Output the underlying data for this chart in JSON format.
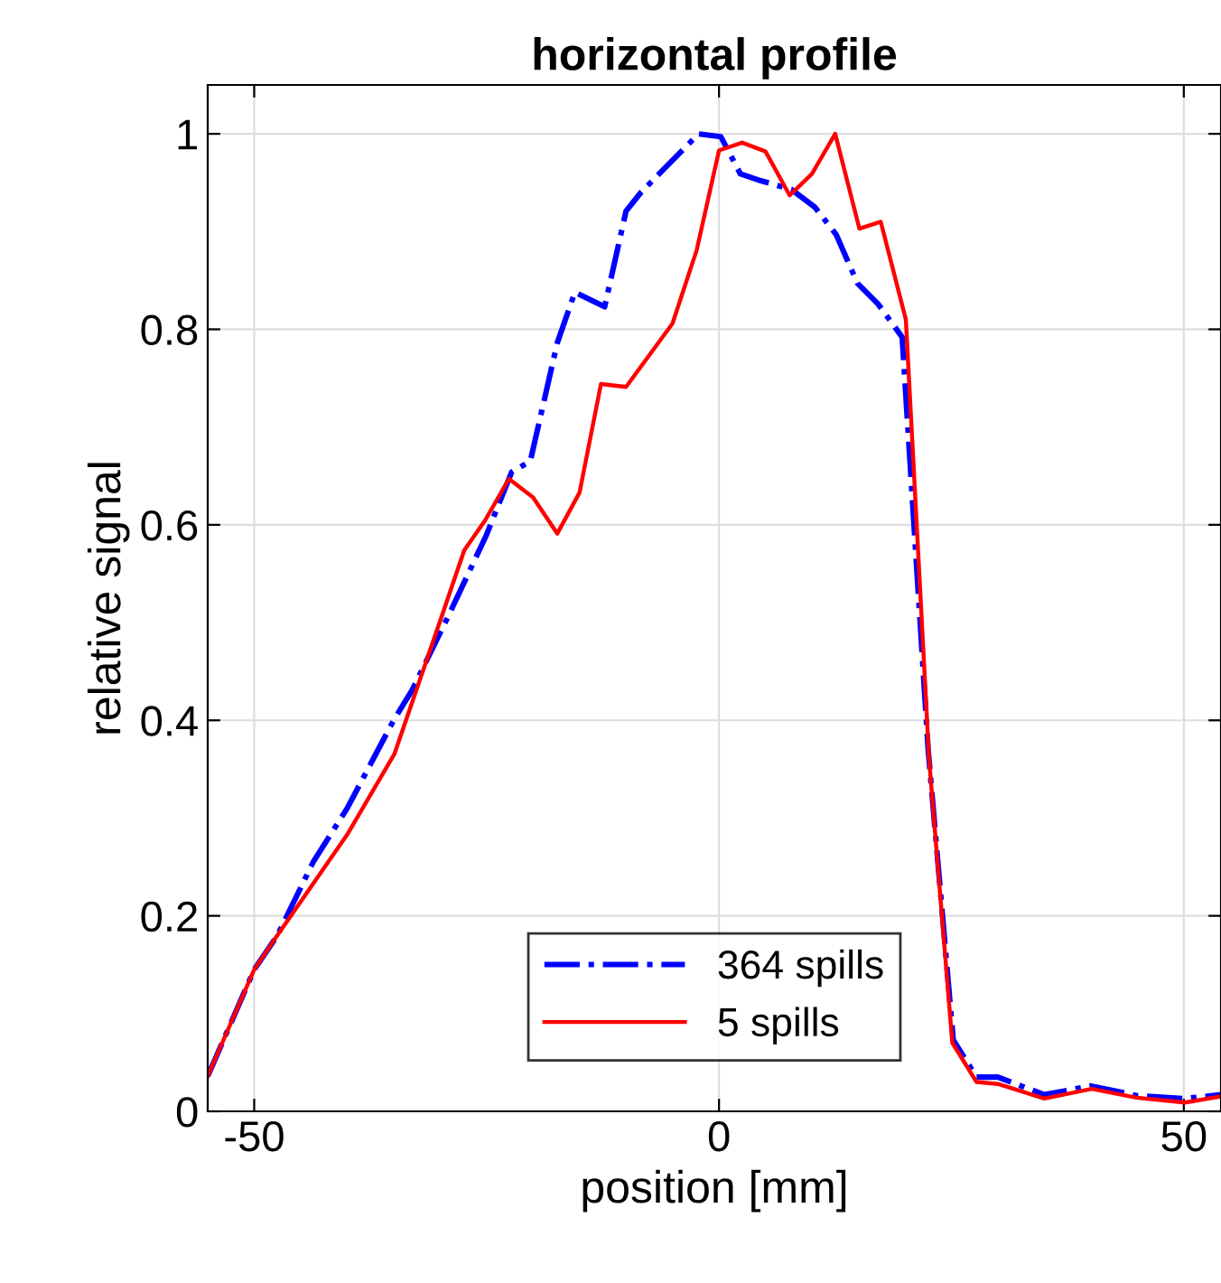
{
  "chart_data": {
    "type": "line",
    "title": "horizontal profile",
    "xlabel": "position [mm]",
    "ylabel": "relative signal",
    "xlim": [
      -55,
      54
    ],
    "ylim": [
      0,
      1.05
    ],
    "xticks": [
      -50,
      0,
      50
    ],
    "yticks": [
      0,
      0.2,
      0.4,
      0.6,
      0.8,
      1
    ],
    "grid": true,
    "legend": "bottom",
    "series": [
      {
        "name": "364 spills",
        "color": "#0000ff",
        "line_style": "dashdot",
        "x": [
          -55,
          -50,
          -47.5,
          -43.6,
          -40,
          -35,
          -33,
          -28.9,
          -25,
          -22.3,
          -20.3,
          -17.4,
          -15.5,
          -12.3,
          -10,
          -8.4,
          -2.2,
          0.2,
          2.3,
          4.5,
          7.8,
          10.3,
          12.6,
          14.9,
          17.1,
          19.7,
          22.5,
          25.2,
          27.7,
          30,
          35,
          40,
          45,
          50,
          54
        ],
        "values": [
          0.036,
          0.145,
          0.18,
          0.256,
          0.31,
          0.4,
          0.431,
          0.511,
          0.59,
          0.654,
          0.665,
          0.786,
          0.838,
          0.823,
          0.921,
          0.94,
          1.0,
          0.997,
          0.959,
          0.952,
          0.943,
          0.925,
          0.897,
          0.847,
          0.826,
          0.792,
          0.37,
          0.073,
          0.035,
          0.035,
          0.017,
          0.026,
          0.016,
          0.013,
          0.017
        ]
      },
      {
        "name": "5 spills",
        "color": "#ff0000",
        "line_style": "solid",
        "x": [
          -55,
          -50,
          -47.8,
          -40,
          -34.9,
          -29.7,
          -27.4,
          -25.2,
          -22.6,
          -20,
          -17.4,
          -15,
          -12.7,
          -10,
          -5,
          -2.4,
          0,
          2.5,
          5,
          7.6,
          10,
          12.5,
          15.1,
          17.4,
          20.1,
          22.6,
          25.1,
          27.7,
          30,
          35,
          40.1,
          44.9,
          50.1,
          53.8
        ],
        "values": [
          0.036,
          0.145,
          0.176,
          0.283,
          0.366,
          0.51,
          0.574,
          0.604,
          0.647,
          0.628,
          0.591,
          0.633,
          0.744,
          0.741,
          0.806,
          0.881,
          0.983,
          0.991,
          0.982,
          0.937,
          0.959,
          1.0,
          0.903,
          0.91,
          0.81,
          0.36,
          0.07,
          0.03,
          0.028,
          0.013,
          0.023,
          0.014,
          0.009,
          0.015
        ]
      }
    ]
  }
}
